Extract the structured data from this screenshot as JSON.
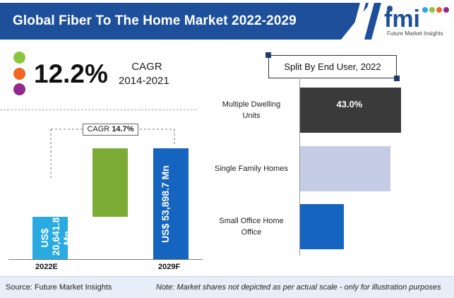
{
  "header": {
    "title": "Global Fiber To The Home Market 2022-2029",
    "logo_text": "Future Market Insights",
    "brand_color": "#1d4f9a"
  },
  "cagr_summary": {
    "value": "12.2%",
    "label": "CAGR",
    "period": "2014-2021",
    "dot_colors": [
      "#8cc63f",
      "#f26522",
      "#92278f"
    ]
  },
  "chart_data": [
    {
      "type": "bar",
      "categories": [
        "2022E",
        "2029F"
      ],
      "values": [
        20641.8,
        53898.7
      ],
      "labels": [
        "US$ 20,641.8 Mn",
        "US$ 53,898.7 Mn"
      ],
      "colors": [
        "#29abe2",
        "#1565c0"
      ],
      "growth_color": "#7cac35",
      "cagr_annotation": {
        "prefix": "CAGR",
        "value": "14.7%"
      }
    },
    {
      "type": "bar",
      "orientation": "horizontal",
      "title": "Split By End User, 2022",
      "categories": [
        "Multiple Dwelling Units",
        "Single Family Homes",
        "Small Office Home Office"
      ],
      "category_lines": [
        [
          "Multiple Dwelling",
          "Units"
        ],
        [
          "Single Family Homes"
        ],
        [
          "Small Office Home",
          "Office"
        ]
      ],
      "values": [
        43.0,
        38.5,
        18.5
      ],
      "value_labels": [
        "43.0%",
        "",
        ""
      ],
      "colors": [
        "#3a3a3a",
        "#c5cce6",
        "#1565c0"
      ]
    }
  ],
  "footer": {
    "source": "Source: Future Market Insights",
    "note": "Note: Market shares not depicted as per actual scale - only for illustration purposes"
  }
}
